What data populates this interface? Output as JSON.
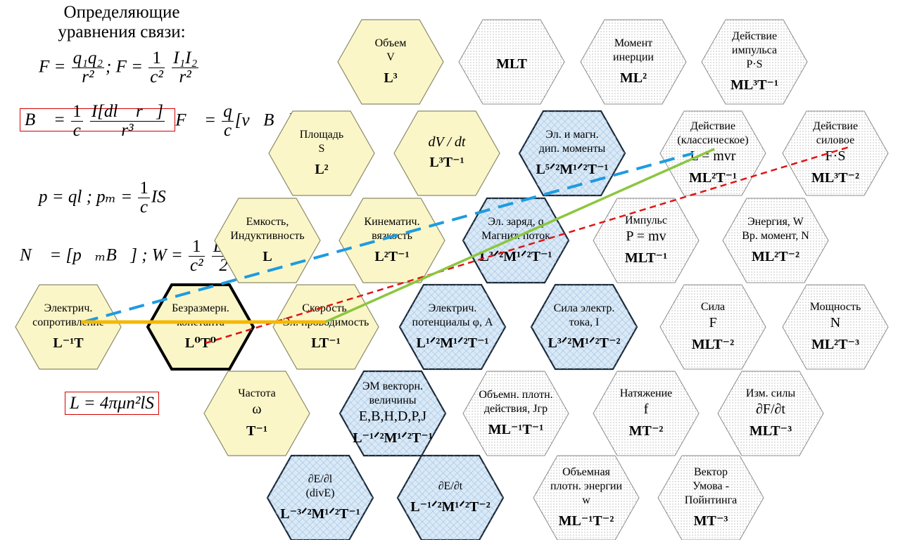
{
  "colors": {
    "yellow": "#fbf6c8",
    "blue_hatch": "#dbe9f6",
    "dotted": "#f4f4f4",
    "hex_border": "#000000",
    "line_blue": "#1e9be0",
    "line_red": "#e01414",
    "line_green": "#8cc63f",
    "line_orange": "#f5b800",
    "box_red": "#d40000"
  },
  "left": {
    "title_line1": "Определяющие",
    "title_line2": "уравнения связи:",
    "eq1_F": "F =",
    "eq1_num": "q₁q₂",
    "eq1_den": "r²",
    "eq1_sep": ";  F =",
    "eq1_c_num": "1",
    "eq1_c_den": "c²",
    "eq1_i_num": "I₁I₂",
    "eq1_i_den": "r²",
    "eq2_B": "B⃗ =",
    "eq2_c_num": "1",
    "eq2_c_den": "c",
    "eq2_num": "I[dl⃗ r⃗]",
    "eq2_den": "r³",
    "eq2_F": "F⃗ =",
    "eq2_q_num": "q",
    "eq2_q_den": "c",
    "eq2_vB": "[v⃗B⃗]",
    "eq3_p": "p = ql ;  pₘ =",
    "eq3_num": "1",
    "eq3_den": "c",
    "eq3_IS": "IS",
    "eq4_N": "N⃗ = [p⃗ₘB⃗] ;  W =",
    "eq4_c_num": "1",
    "eq4_c_den": "c²",
    "eq4_num": "LI²",
    "eq4_den": "2",
    "eq5": "L = 4πμn²lS"
  },
  "top_strip": "( , , )",
  "cells": [
    {
      "id": "volume",
      "fill": "yellow",
      "border": "normal",
      "lines": [
        "Объем",
        "V"
      ],
      "dim": "L³"
    },
    {
      "id": "mlt-top",
      "fill": "dotted",
      "border": "thin",
      "lines": [],
      "dim": "MLT"
    },
    {
      "id": "moment-inertia",
      "fill": "dotted",
      "border": "thin",
      "lines": [
        "Момент",
        "инерции"
      ],
      "dim": "ML²"
    },
    {
      "id": "action-impulse",
      "fill": "dotted",
      "border": "thin",
      "lines": [
        "Действие",
        "импульса",
        "P·S"
      ],
      "dim": "ML³T⁻¹"
    },
    {
      "id": "area",
      "fill": "yellow",
      "border": "normal",
      "lines": [
        "Площадь",
        "S"
      ],
      "dim": "L²"
    },
    {
      "id": "dvdt",
      "fill": "yellow",
      "border": "normal",
      "lines": [
        "dV / dt"
      ],
      "italic": true,
      "dim": "L³T⁻¹"
    },
    {
      "id": "dipole-moments",
      "fill": "blue",
      "border": "bold",
      "lines": [
        "Эл. и магн.",
        "дип. моменты"
      ],
      "dim": "L⁵ᐟ²M¹ᐟ²T⁻¹"
    },
    {
      "id": "action-classical",
      "fill": "dotted",
      "border": "thin",
      "lines": [
        "Действие",
        "(классическое)"
      ],
      "big": "L = mvr",
      "dim": "ML²T⁻¹"
    },
    {
      "id": "action-force",
      "fill": "dotted",
      "border": "thin",
      "lines": [
        "Действие",
        "силовое"
      ],
      "big": "F·S",
      "dim": "ML³T⁻²"
    },
    {
      "id": "capacitance",
      "fill": "yellow",
      "border": "normal",
      "lines": [
        "Емкость,",
        "Индуктивность"
      ],
      "dim": "L"
    },
    {
      "id": "kinematic-viscosity",
      "fill": "yellow",
      "border": "normal",
      "lines": [
        "Кинематич.",
        "вязкость"
      ],
      "dim": "L²T⁻¹"
    },
    {
      "id": "charge-flux",
      "fill": "blue",
      "border": "bold",
      "lines": [
        "Эл. заряд, q",
        "Магнит. поток"
      ],
      "dim": "L³ᐟ²M¹ᐟ²T⁻¹"
    },
    {
      "id": "momentum",
      "fill": "dotted",
      "border": "thin",
      "lines": [
        "Импульс"
      ],
      "big": "P = mv",
      "dim": "MLT⁻¹"
    },
    {
      "id": "energy",
      "fill": "dotted",
      "border": "thin",
      "lines": [
        "Энергия, W",
        "Вр. момент, N"
      ],
      "dim": "ML²T⁻²"
    },
    {
      "id": "resistance",
      "fill": "yellow",
      "border": "normal",
      "lines": [
        "Электрич.",
        "сопротивление"
      ],
      "dim": "L⁻¹T"
    },
    {
      "id": "dimensionless",
      "fill": "yellow",
      "border": "heavy",
      "lines": [
        "Безразмерн.",
        "константа"
      ],
      "dim": "L⁰T⁰"
    },
    {
      "id": "velocity",
      "fill": "yellow",
      "border": "normal",
      "lines": [
        "Скорость,",
        "Эл. проводимость"
      ],
      "dim": "LT⁻¹"
    },
    {
      "id": "potentials",
      "fill": "blue",
      "border": "bold",
      "lines": [
        "Электрич.",
        "потенциалы φ, A"
      ],
      "dim": "L¹ᐟ²M¹ᐟ²T⁻¹"
    },
    {
      "id": "current",
      "fill": "blue",
      "border": "bold",
      "lines": [
        "Сила электр.",
        "тока, I"
      ],
      "dim": "L³ᐟ²M¹ᐟ²T⁻²"
    },
    {
      "id": "force",
      "fill": "dotted",
      "border": "thin",
      "lines": [
        "Сила"
      ],
      "big": "F",
      "dim": "MLT⁻²"
    },
    {
      "id": "power",
      "fill": "dotted",
      "border": "thin",
      "lines": [
        "Мощность"
      ],
      "big": "N",
      "dim": "ML²T⁻³"
    },
    {
      "id": "frequency",
      "fill": "yellow",
      "border": "normal",
      "lines": [
        "Частота"
      ],
      "big": "ω",
      "dim": "T⁻¹"
    },
    {
      "id": "em-vectors",
      "fill": "blue",
      "border": "bold",
      "lines": [
        "ЭМ векторн.",
        "величины"
      ],
      "big": "E,B,H,D,P,J",
      "dim": "L⁻¹ᐟ²M¹ᐟ²T⁻¹"
    },
    {
      "id": "action-density",
      "fill": "dotted",
      "border": "thin",
      "lines": [
        "Объемн. плотн.",
        "действия, Jгр"
      ],
      "dim": "ML⁻¹T⁻¹"
    },
    {
      "id": "tension",
      "fill": "dotted",
      "border": "thin",
      "lines": [
        "Натяжение"
      ],
      "big": "f",
      "dim": "MT⁻²"
    },
    {
      "id": "force-change",
      "fill": "dotted",
      "border": "thin",
      "lines": [
        "Изм. силы"
      ],
      "big": "∂F/∂t",
      "dim": "MLT⁻³"
    },
    {
      "id": "dE-dl",
      "fill": "blue",
      "border": "bold",
      "lines": [
        "∂E/∂l",
        "(divE)"
      ],
      "dim": "L⁻³ᐟ²M¹ᐟ²T⁻¹"
    },
    {
      "id": "dE-dt",
      "fill": "blue",
      "border": "bold",
      "lines": [
        "∂E/∂t"
      ],
      "dim": "L⁻¹ᐟ²M¹ᐟ²T⁻²"
    },
    {
      "id": "energy-density",
      "fill": "dotted",
      "border": "thin",
      "lines": [
        "Объемная",
        "плотн. энергии",
        "w"
      ],
      "dim": "ML⁻¹T⁻²"
    },
    {
      "id": "umov-poynting",
      "fill": "dotted",
      "border": "thin",
      "lines": [
        "Вектор",
        "Умова -",
        "Пойнтинга"
      ],
      "dim": "MT⁻³"
    }
  ]
}
